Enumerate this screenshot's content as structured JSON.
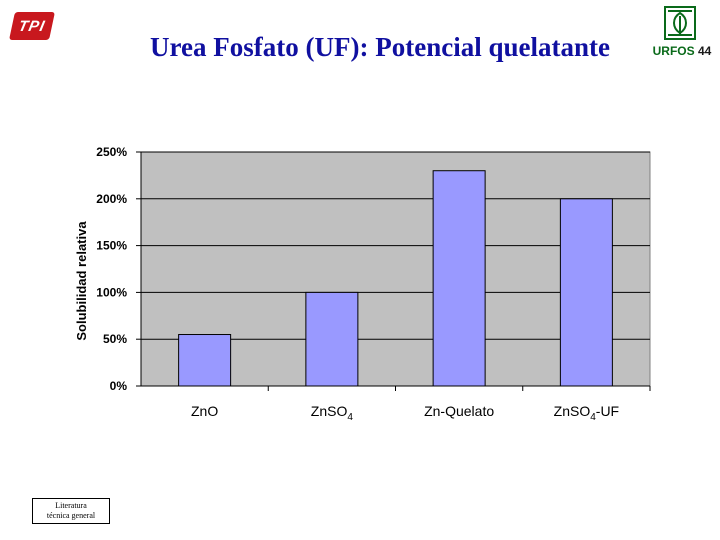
{
  "title": "Urea Fosfato (UF): Potencial quelatante",
  "logos": {
    "left_text": "TPI",
    "right_text_prefix": "URFOS",
    "right_text_suffix": "44",
    "left_color": "#c8181e",
    "right_color": "#0a6a1a"
  },
  "footnote": {
    "line1": "Literatura",
    "line2": "técnica general"
  },
  "chart_data": {
    "type": "bar",
    "title": "",
    "xlabel": "",
    "ylabel": "Solubilidad relativa",
    "categories": [
      {
        "base": "ZnO",
        "sub": "",
        "suffix": ""
      },
      {
        "base": "ZnSO",
        "sub": "4",
        "suffix": ""
      },
      {
        "base": "Zn-Quelato",
        "sub": "",
        "suffix": ""
      },
      {
        "base": "ZnSO",
        "sub": "4",
        "suffix": "-UF"
      }
    ],
    "values": [
      55,
      100,
      230,
      200
    ],
    "ylim": [
      0,
      250
    ],
    "yticks": [
      0,
      50,
      100,
      150,
      200,
      250
    ],
    "ytick_format": "{v}%",
    "grid": true,
    "plot_background": "#c0c0c0",
    "bar_color": "#9999ff",
    "legend": "none"
  }
}
